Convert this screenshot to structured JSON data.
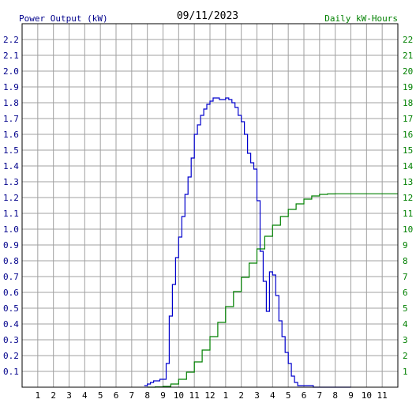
{
  "chart_data": {
    "type": "line",
    "title": "09/11/2023",
    "left_axis_label": "Power Output (kW)",
    "right_axis_label": "Daily kW-Hours",
    "left_ylim": [
      0,
      2.3
    ],
    "right_ylim": [
      0,
      23
    ],
    "left_ticks": [
      "0.1",
      "0.2",
      "0.3",
      "0.4",
      "0.5",
      "0.6",
      "0.7",
      "0.8",
      "0.9",
      "1.0",
      "1.1",
      "1.2",
      "1.3",
      "1.4",
      "1.5",
      "1.6",
      "1.7",
      "1.8",
      "1.9",
      "2.0",
      "2.1",
      "2.2"
    ],
    "right_ticks": [
      "1",
      "2",
      "3",
      "4",
      "5",
      "6",
      "7",
      "8",
      "9",
      "10",
      "11",
      "12",
      "13",
      "14",
      "15",
      "16",
      "17",
      "18",
      "19",
      "20",
      "21",
      "22"
    ],
    "x_ticks": [
      "1",
      "2",
      "3",
      "4",
      "5",
      "6",
      "7",
      "8",
      "9",
      "10",
      "11",
      "12",
      "1",
      "2",
      "3",
      "4",
      "5",
      "6",
      "7",
      "8",
      "9",
      "10",
      "11"
    ],
    "xlim_hours": [
      0,
      24
    ],
    "grid": true,
    "colors": {
      "power": "#0000cc",
      "energy": "#008000",
      "grid": "#a0a0a0"
    },
    "series": [
      {
        "name": "Power Output (kW)",
        "axis": "left",
        "x": [
          7.8,
          8.0,
          8.2,
          8.4,
          8.6,
          8.8,
          9.0,
          9.2,
          9.4,
          9.6,
          9.8,
          10.0,
          10.2,
          10.4,
          10.6,
          10.8,
          11.0,
          11.2,
          11.4,
          11.6,
          11.8,
          12.0,
          12.2,
          12.4,
          12.6,
          12.8,
          13.0,
          13.2,
          13.4,
          13.6,
          13.8,
          14.0,
          14.2,
          14.4,
          14.6,
          14.8,
          15.0,
          15.2,
          15.4,
          15.6,
          15.8,
          16.0,
          16.2,
          16.4,
          16.6,
          16.8,
          17.0,
          17.2,
          17.4,
          17.6,
          17.8,
          18.0,
          18.2,
          18.4,
          18.6,
          18.8,
          19.0,
          19.2,
          19.4,
          19.6,
          19.8,
          20.0,
          20.2,
          20.4,
          20.6,
          20.8,
          21.0
        ],
        "y": [
          0.01,
          0.02,
          0.03,
          0.04,
          0.04,
          0.05,
          0.05,
          0.15,
          0.45,
          0.65,
          0.82,
          0.95,
          1.08,
          1.22,
          1.33,
          1.45,
          1.6,
          1.66,
          1.72,
          1.76,
          1.79,
          1.81,
          1.83,
          1.83,
          1.82,
          1.82,
          1.83,
          1.82,
          1.8,
          1.77,
          1.72,
          1.68,
          1.6,
          1.48,
          1.42,
          1.38,
          1.18,
          0.86,
          0.67,
          0.48,
          0.73,
          0.71,
          0.58,
          0.42,
          0.32,
          0.22,
          0.15,
          0.07,
          0.03,
          0.01,
          0.01,
          0.01,
          0.01,
          0.01,
          0.0,
          0.0,
          0.0,
          0.0,
          0.0,
          0.0,
          0.0,
          0.0,
          0.0,
          0.0,
          0.0,
          0.0,
          0.0
        ]
      },
      {
        "name": "Daily kW-Hours",
        "axis": "right",
        "x": [
          8.0,
          8.5,
          9.0,
          9.5,
          10.0,
          10.5,
          11.0,
          11.5,
          12.0,
          12.5,
          13.0,
          13.5,
          14.0,
          14.5,
          15.0,
          15.5,
          16.0,
          16.5,
          17.0,
          17.5,
          18.0,
          18.5,
          19.0,
          19.5,
          20.0,
          21.0,
          22.0,
          23.0,
          24.0
        ],
        "y": [
          0.0,
          0.02,
          0.05,
          0.2,
          0.5,
          0.95,
          1.6,
          2.35,
          3.2,
          4.1,
          5.1,
          6.05,
          6.95,
          7.85,
          8.75,
          9.55,
          10.25,
          10.8,
          11.25,
          11.6,
          11.9,
          12.1,
          12.2,
          12.23,
          12.24,
          12.24,
          12.24,
          12.24,
          12.24
        ]
      }
    ]
  }
}
